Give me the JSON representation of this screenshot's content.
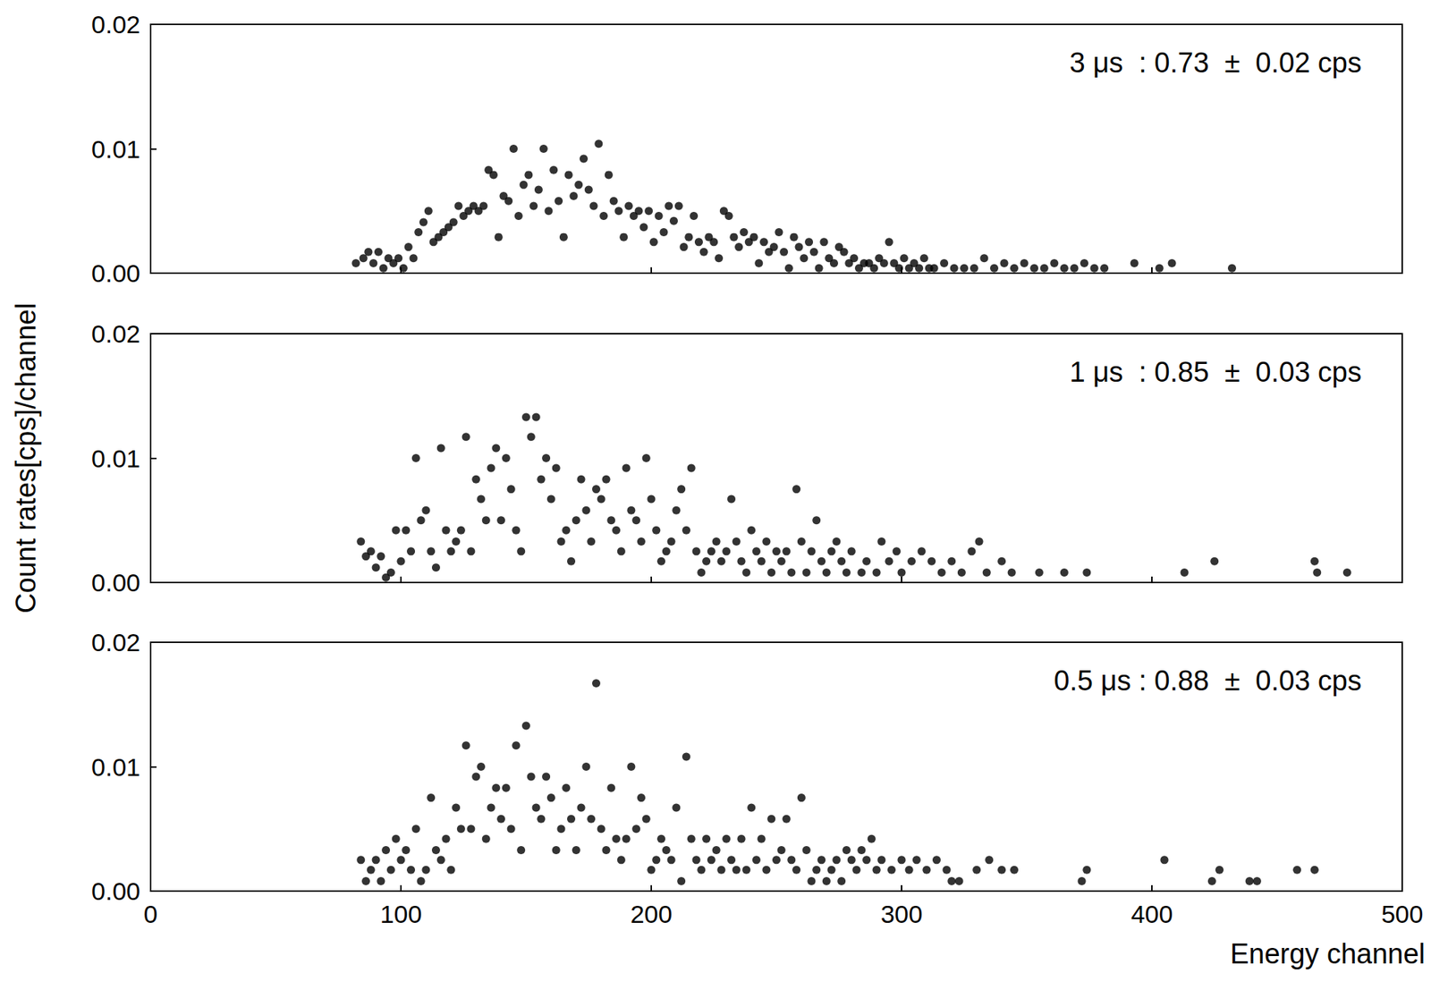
{
  "chart_data": [
    {
      "type": "scatter",
      "annotation": "3 μs  : 0.73  ±  0.02 cps",
      "color": "#000000",
      "marker": "circle",
      "tick_labels": "y",
      "xlim": [
        0,
        500
      ],
      "xticks": [
        0,
        100,
        200,
        300,
        400,
        500
      ],
      "ylim": [
        0,
        0.02
      ],
      "yticks": [
        {
          "value": 0,
          "label": "0.00"
        },
        {
          "value": 0.01,
          "label": "0.01"
        },
        {
          "value": 0.02,
          "label": "0.02"
        }
      ],
      "x": [
        82,
        85,
        87,
        89,
        91,
        93,
        95,
        97,
        99,
        101,
        103,
        105,
        107,
        109,
        111,
        113,
        115,
        117,
        119,
        121,
        123,
        125,
        127,
        129,
        131,
        133,
        135,
        137,
        139,
        141,
        143,
        145,
        147,
        149,
        151,
        153,
        155,
        157,
        159,
        161,
        163,
        165,
        167,
        169,
        171,
        173,
        175,
        177,
        179,
        181,
        183,
        185,
        187,
        189,
        191,
        193,
        195,
        197,
        199,
        201,
        203,
        205,
        207,
        209,
        211,
        213,
        215,
        217,
        219,
        221,
        223,
        225,
        227,
        229,
        231,
        233,
        235,
        237,
        239,
        241,
        243,
        245,
        247,
        249,
        251,
        253,
        255,
        257,
        259,
        261,
        263,
        265,
        267,
        269,
        271,
        273,
        275,
        277,
        279,
        281,
        283,
        285,
        287,
        289,
        291,
        293,
        295,
        297,
        299,
        301,
        303,
        305,
        307,
        309,
        311,
        313,
        317,
        321,
        325,
        329,
        333,
        337,
        341,
        345,
        349,
        353,
        357,
        361,
        365,
        369,
        373,
        377,
        381,
        393,
        403,
        408,
        432
      ],
      "y": [
        0.0008,
        0.0012,
        0.0017,
        0.0008,
        0.0017,
        0.0004,
        0.0012,
        0.0008,
        0.0012,
        0.0004,
        0.0021,
        0.0012,
        0.0033,
        0.0041,
        0.005,
        0.0025,
        0.0029,
        0.0033,
        0.0037,
        0.0041,
        0.0054,
        0.0046,
        0.005,
        0.0054,
        0.005,
        0.0054,
        0.0083,
        0.0079,
        0.0029,
        0.0062,
        0.0058,
        0.01,
        0.0046,
        0.0071,
        0.0079,
        0.0054,
        0.0067,
        0.01,
        0.005,
        0.0083,
        0.0058,
        0.0029,
        0.0079,
        0.0062,
        0.0071,
        0.0092,
        0.0067,
        0.0054,
        0.0104,
        0.0046,
        0.0079,
        0.0058,
        0.005,
        0.0029,
        0.0054,
        0.0046,
        0.005,
        0.0037,
        0.005,
        0.0025,
        0.0046,
        0.0033,
        0.0054,
        0.0042,
        0.0054,
        0.0021,
        0.0029,
        0.0046,
        0.0025,
        0.0017,
        0.0029,
        0.0025,
        0.0012,
        0.005,
        0.0046,
        0.0029,
        0.0021,
        0.0033,
        0.0025,
        0.0029,
        0.0008,
        0.0025,
        0.0017,
        0.0021,
        0.0033,
        0.0017,
        0.0004,
        0.0029,
        0.0021,
        0.0012,
        0.0025,
        0.0017,
        0.0004,
        0.0025,
        0.0012,
        0.0008,
        0.0021,
        0.0017,
        0.0008,
        0.0012,
        0.0004,
        0.0008,
        0.0008,
        0.0004,
        0.0012,
        0.0008,
        0.0025,
        0.0008,
        0.0004,
        0.0012,
        0.0004,
        0.0008,
        0.0004,
        0.0012,
        0.0004,
        0.0004,
        0.0008,
        0.0004,
        0.0004,
        0.0004,
        0.0012,
        0.0004,
        0.0008,
        0.0004,
        0.0008,
        0.0004,
        0.0004,
        0.0008,
        0.0004,
        0.0004,
        0.0008,
        0.0004,
        0.0004,
        0.0008,
        0.0004,
        0.0008,
        0.0004
      ]
    },
    {
      "type": "scatter",
      "annotation": "1 μs  : 0.85  ±  0.03 cps",
      "ylabel": "Count rates[cps]/channel",
      "color": "#000000",
      "marker": "circle",
      "tick_labels": "y",
      "xlim": [
        0,
        500
      ],
      "xticks": [
        0,
        100,
        200,
        300,
        400,
        500
      ],
      "ylim": [
        0,
        0.02
      ],
      "yticks": [
        {
          "value": 0,
          "label": "0.00"
        },
        {
          "value": 0.01,
          "label": "0.01"
        },
        {
          "value": 0.02,
          "label": "0.02"
        }
      ],
      "x": [
        84,
        86,
        88,
        90,
        92,
        94,
        96,
        98,
        100,
        102,
        104,
        106,
        108,
        110,
        112,
        114,
        116,
        118,
        120,
        122,
        124,
        126,
        128,
        130,
        132,
        134,
        136,
        138,
        140,
        142,
        144,
        146,
        148,
        150,
        152,
        154,
        156,
        158,
        160,
        162,
        164,
        166,
        168,
        170,
        172,
        174,
        176,
        178,
        180,
        182,
        184,
        186,
        188,
        190,
        192,
        194,
        196,
        198,
        200,
        202,
        204,
        206,
        208,
        210,
        212,
        214,
        216,
        218,
        220,
        222,
        224,
        226,
        228,
        230,
        232,
        234,
        236,
        238,
        240,
        242,
        244,
        246,
        248,
        250,
        252,
        254,
        256,
        258,
        260,
        262,
        264,
        266,
        268,
        270,
        272,
        274,
        276,
        278,
        280,
        284,
        286,
        290,
        292,
        295,
        298,
        300,
        304,
        308,
        312,
        316,
        320,
        324,
        328,
        331,
        334,
        340,
        344,
        355,
        365,
        374,
        413,
        425,
        465,
        466,
        478
      ],
      "y": [
        0.0033,
        0.0021,
        0.0025,
        0.0012,
        0.0021,
        0.0004,
        0.0008,
        0.0042,
        0.0017,
        0.0042,
        0.0025,
        0.01,
        0.005,
        0.0058,
        0.0025,
        0.0012,
        0.0108,
        0.0042,
        0.0025,
        0.0033,
        0.0042,
        0.0117,
        0.0025,
        0.0083,
        0.0067,
        0.005,
        0.0092,
        0.0108,
        0.005,
        0.01,
        0.0075,
        0.0042,
        0.0025,
        0.0133,
        0.0117,
        0.0133,
        0.0083,
        0.01,
        0.0067,
        0.0092,
        0.0033,
        0.0042,
        0.0017,
        0.005,
        0.0083,
        0.0058,
        0.0033,
        0.0075,
        0.0067,
        0.0083,
        0.005,
        0.0042,
        0.0025,
        0.0092,
        0.0058,
        0.005,
        0.0033,
        0.01,
        0.0067,
        0.0042,
        0.0017,
        0.0025,
        0.0033,
        0.0058,
        0.0075,
        0.0042,
        0.0092,
        0.0025,
        0.0008,
        0.0017,
        0.0025,
        0.0033,
        0.0017,
        0.0025,
        0.0067,
        0.0033,
        0.0017,
        0.0008,
        0.0042,
        0.0025,
        0.0017,
        0.0033,
        0.0008,
        0.0025,
        0.0017,
        0.0025,
        0.0008,
        0.0075,
        0.0033,
        0.0008,
        0.0025,
        0.005,
        0.0017,
        0.0008,
        0.0025,
        0.0033,
        0.0017,
        0.0008,
        0.0025,
        0.0008,
        0.0017,
        0.0008,
        0.0033,
        0.0017,
        0.0025,
        0.0008,
        0.0017,
        0.0025,
        0.0017,
        0.0008,
        0.0017,
        0.0008,
        0.0025,
        0.0033,
        0.0008,
        0.0017,
        0.0008,
        0.0008,
        0.0008,
        0.0008,
        0.0008,
        0.0017,
        0.0017,
        0.0008,
        0.0008
      ]
    },
    {
      "type": "scatter",
      "annotation": "0.5 μs : 0.88  ±  0.03 cps",
      "xlabel": "Energy channel",
      "color": "#000000",
      "marker": "circle",
      "xlim": [
        0,
        500
      ],
      "xticks": [
        0,
        100,
        200,
        300,
        400,
        500
      ],
      "ylim": [
        0,
        0.02
      ],
      "yticks": [
        {
          "value": 0,
          "label": "0.00"
        },
        {
          "value": 0.01,
          "label": "0.01"
        },
        {
          "value": 0.02,
          "label": "0.02"
        }
      ],
      "x": [
        84,
        86,
        88,
        90,
        92,
        94,
        96,
        98,
        100,
        102,
        104,
        106,
        108,
        110,
        112,
        114,
        116,
        118,
        120,
        122,
        124,
        126,
        128,
        130,
        132,
        134,
        136,
        138,
        140,
        142,
        144,
        146,
        148,
        150,
        152,
        154,
        156,
        158,
        160,
        162,
        164,
        166,
        168,
        170,
        172,
        174,
        176,
        178,
        180,
        182,
        184,
        186,
        188,
        190,
        192,
        194,
        196,
        198,
        200,
        202,
        204,
        206,
        208,
        210,
        212,
        214,
        216,
        218,
        220,
        222,
        224,
        226,
        228,
        230,
        232,
        234,
        236,
        238,
        240,
        242,
        244,
        246,
        248,
        250,
        252,
        254,
        256,
        258,
        260,
        262,
        264,
        266,
        268,
        270,
        272,
        274,
        276,
        278,
        280,
        282,
        284,
        286,
        288,
        290,
        292,
        296,
        300,
        303,
        306,
        310,
        314,
        318,
        320,
        323,
        330,
        335,
        340,
        345,
        372,
        374,
        405,
        424,
        427,
        439,
        442,
        458,
        465
      ],
      "y": [
        0.0025,
        0.0008,
        0.0017,
        0.0025,
        0.0008,
        0.0033,
        0.0017,
        0.0042,
        0.0025,
        0.0033,
        0.0017,
        0.005,
        0.0008,
        0.0017,
        0.0075,
        0.0033,
        0.0025,
        0.0042,
        0.0017,
        0.0067,
        0.005,
        0.0117,
        0.005,
        0.0092,
        0.01,
        0.0042,
        0.0067,
        0.0083,
        0.0058,
        0.0083,
        0.005,
        0.0117,
        0.0033,
        0.0133,
        0.0092,
        0.0067,
        0.0058,
        0.0092,
        0.0075,
        0.0033,
        0.005,
        0.0083,
        0.0058,
        0.0033,
        0.0067,
        0.01,
        0.0058,
        0.0167,
        0.005,
        0.0033,
        0.0083,
        0.0042,
        0.0025,
        0.0042,
        0.01,
        0.005,
        0.0075,
        0.0058,
        0.0017,
        0.0025,
        0.0042,
        0.0033,
        0.0025,
        0.0067,
        0.0008,
        0.0108,
        0.0042,
        0.0025,
        0.0017,
        0.0042,
        0.0025,
        0.0033,
        0.0017,
        0.0042,
        0.0025,
        0.0017,
        0.0042,
        0.0017,
        0.0067,
        0.0025,
        0.0042,
        0.0017,
        0.0058,
        0.0025,
        0.0033,
        0.0058,
        0.0025,
        0.0017,
        0.0075,
        0.0033,
        0.0008,
        0.0017,
        0.0025,
        0.0008,
        0.0017,
        0.0025,
        0.0008,
        0.0033,
        0.0025,
        0.0017,
        0.0033,
        0.0025,
        0.0042,
        0.0017,
        0.0025,
        0.0017,
        0.0025,
        0.0017,
        0.0025,
        0.0017,
        0.0025,
        0.0017,
        0.0008,
        0.0008,
        0.0017,
        0.0025,
        0.0017,
        0.0017,
        0.0008,
        0.0017,
        0.0025,
        0.0008,
        0.0017,
        0.0008,
        0.0008,
        0.0017,
        0.0017
      ]
    }
  ]
}
